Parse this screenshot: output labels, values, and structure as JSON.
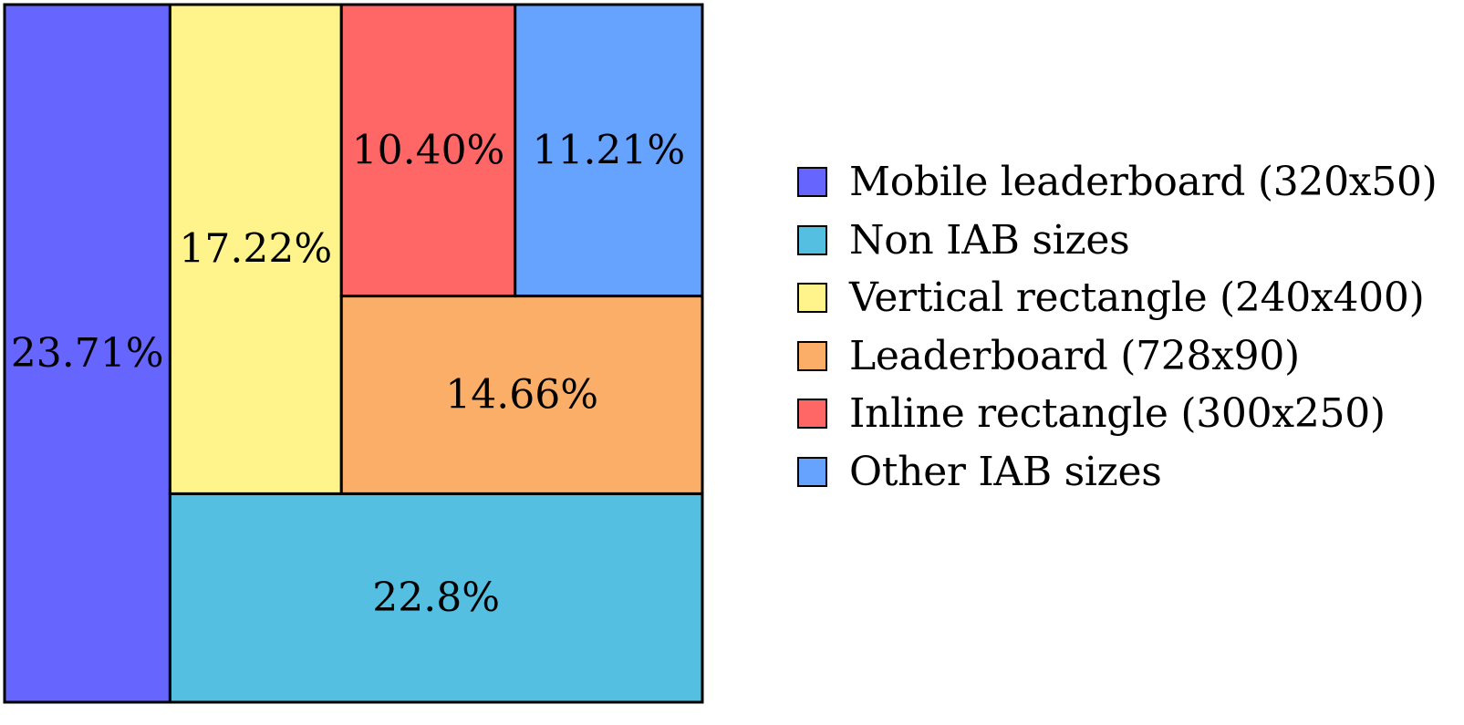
{
  "chart_data": {
    "type": "treemap",
    "series": [
      {
        "name": "Mobile leaderboard (320x50)",
        "value": 23.71,
        "label": "23.71%",
        "color": "#6666FF"
      },
      {
        "name": "Non IAB sizes",
        "value": 22.8,
        "label": "22.8%",
        "color": "#54BFE0"
      },
      {
        "name": "Vertical rectangle (240x400)",
        "value": 17.22,
        "label": "17.22%",
        "color": "#FFF48C"
      },
      {
        "name": "Leaderboard (728x90)",
        "value": 14.66,
        "label": "14.66%",
        "color": "#FBAE67"
      },
      {
        "name": "Inline rectangle (300x250)",
        "value": 10.4,
        "label": "10.40%",
        "color": "#FF6666"
      },
      {
        "name": "Other IAB sizes",
        "value": 11.21,
        "label": "11.21%",
        "color": "#66A3FF"
      }
    ],
    "legend_position": "right"
  }
}
